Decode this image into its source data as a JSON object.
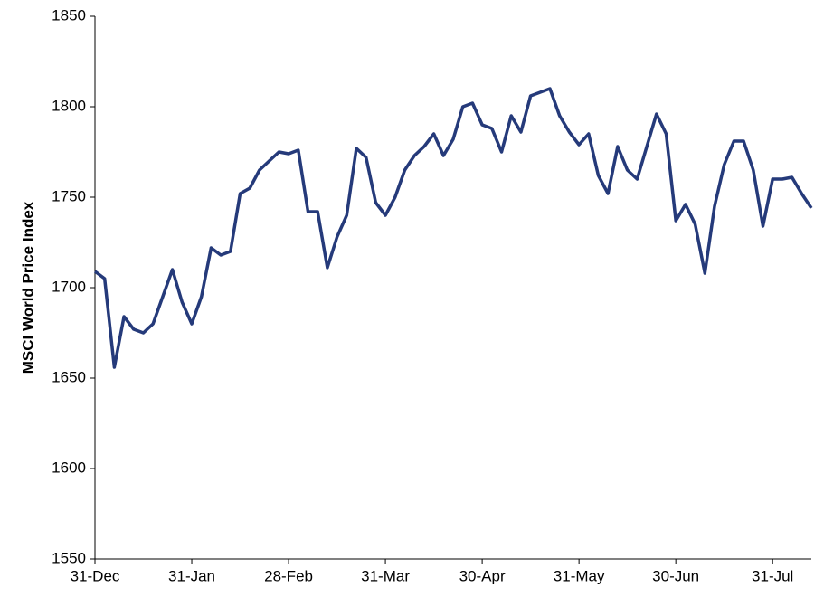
{
  "chart_data": {
    "type": "line",
    "y_axis_label": "MSCI World Price Index",
    "categories": [
      "31-Dec",
      null,
      null,
      null,
      null,
      null,
      null,
      null,
      null,
      null,
      "31-Jan",
      null,
      null,
      null,
      null,
      null,
      null,
      null,
      null,
      null,
      "28-Feb",
      null,
      null,
      null,
      null,
      null,
      null,
      null,
      null,
      null,
      "31-Mar",
      null,
      null,
      null,
      null,
      null,
      null,
      null,
      null,
      null,
      "30-Apr",
      null,
      null,
      null,
      null,
      null,
      null,
      null,
      null,
      null,
      "31-May",
      null,
      null,
      null,
      null,
      null,
      null,
      null,
      null,
      null,
      "30-Jun",
      null,
      null,
      null,
      null,
      null,
      null,
      null,
      null,
      null,
      "31-Jul",
      null,
      null,
      null,
      null
    ],
    "series": [
      {
        "name": "MSCI World Price Index",
        "color": "#253a7a",
        "values": [
          1709,
          1705,
          1656,
          1684,
          1677,
          1675,
          1680,
          1695,
          1710,
          1692,
          1680,
          1695,
          1722,
          1718,
          1720,
          1752,
          1755,
          1765,
          1770,
          1775,
          1774,
          1776,
          1742,
          1742,
          1711,
          1728,
          1740,
          1777,
          1772,
          1747,
          1740,
          1750,
          1765,
          1773,
          1778,
          1785,
          1773,
          1782,
          1800,
          1802,
          1790,
          1788,
          1775,
          1795,
          1786,
          1806,
          1808,
          1810,
          1795,
          1786,
          1779,
          1785,
          1762,
          1752,
          1778,
          1765,
          1760,
          1778,
          1796,
          1785,
          1737,
          1746,
          1735,
          1708,
          1745,
          1768,
          1781,
          1781,
          1765,
          1734,
          1760,
          1760,
          1761,
          1752,
          1744
        ]
      }
    ],
    "ylim": [
      1550,
      1850
    ],
    "yticks": [
      1550,
      1600,
      1650,
      1700,
      1750,
      1800,
      1850
    ],
    "grid": false
  }
}
